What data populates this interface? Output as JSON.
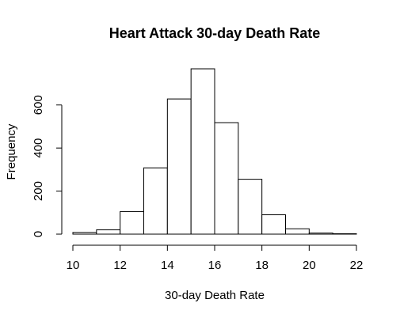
{
  "chart_data": {
    "type": "histogram",
    "title": "Heart Attack 30-day Death Rate",
    "xlabel": "30-day Death Rate",
    "ylabel": "Frequency",
    "bins": [
      {
        "from": 10,
        "to": 11,
        "count": 8
      },
      {
        "from": 11,
        "to": 12,
        "count": 20
      },
      {
        "from": 12,
        "to": 13,
        "count": 105
      },
      {
        "from": 13,
        "to": 14,
        "count": 308
      },
      {
        "from": 14,
        "to": 15,
        "count": 628
      },
      {
        "from": 15,
        "to": 16,
        "count": 768
      },
      {
        "from": 16,
        "to": 17,
        "count": 518
      },
      {
        "from": 17,
        "to": 18,
        "count": 255
      },
      {
        "from": 18,
        "to": 19,
        "count": 90
      },
      {
        "from": 19,
        "to": 20,
        "count": 25
      },
      {
        "from": 20,
        "to": 21,
        "count": 5
      },
      {
        "from": 21,
        "to": 22,
        "count": 2
      }
    ],
    "x_ticks": [
      10,
      12,
      14,
      16,
      18,
      20,
      22
    ],
    "y_ticks": [
      0,
      200,
      400,
      600
    ],
    "xlim": [
      10,
      22
    ],
    "ylim": [
      0,
      768
    ],
    "grid": false,
    "legend": false
  }
}
